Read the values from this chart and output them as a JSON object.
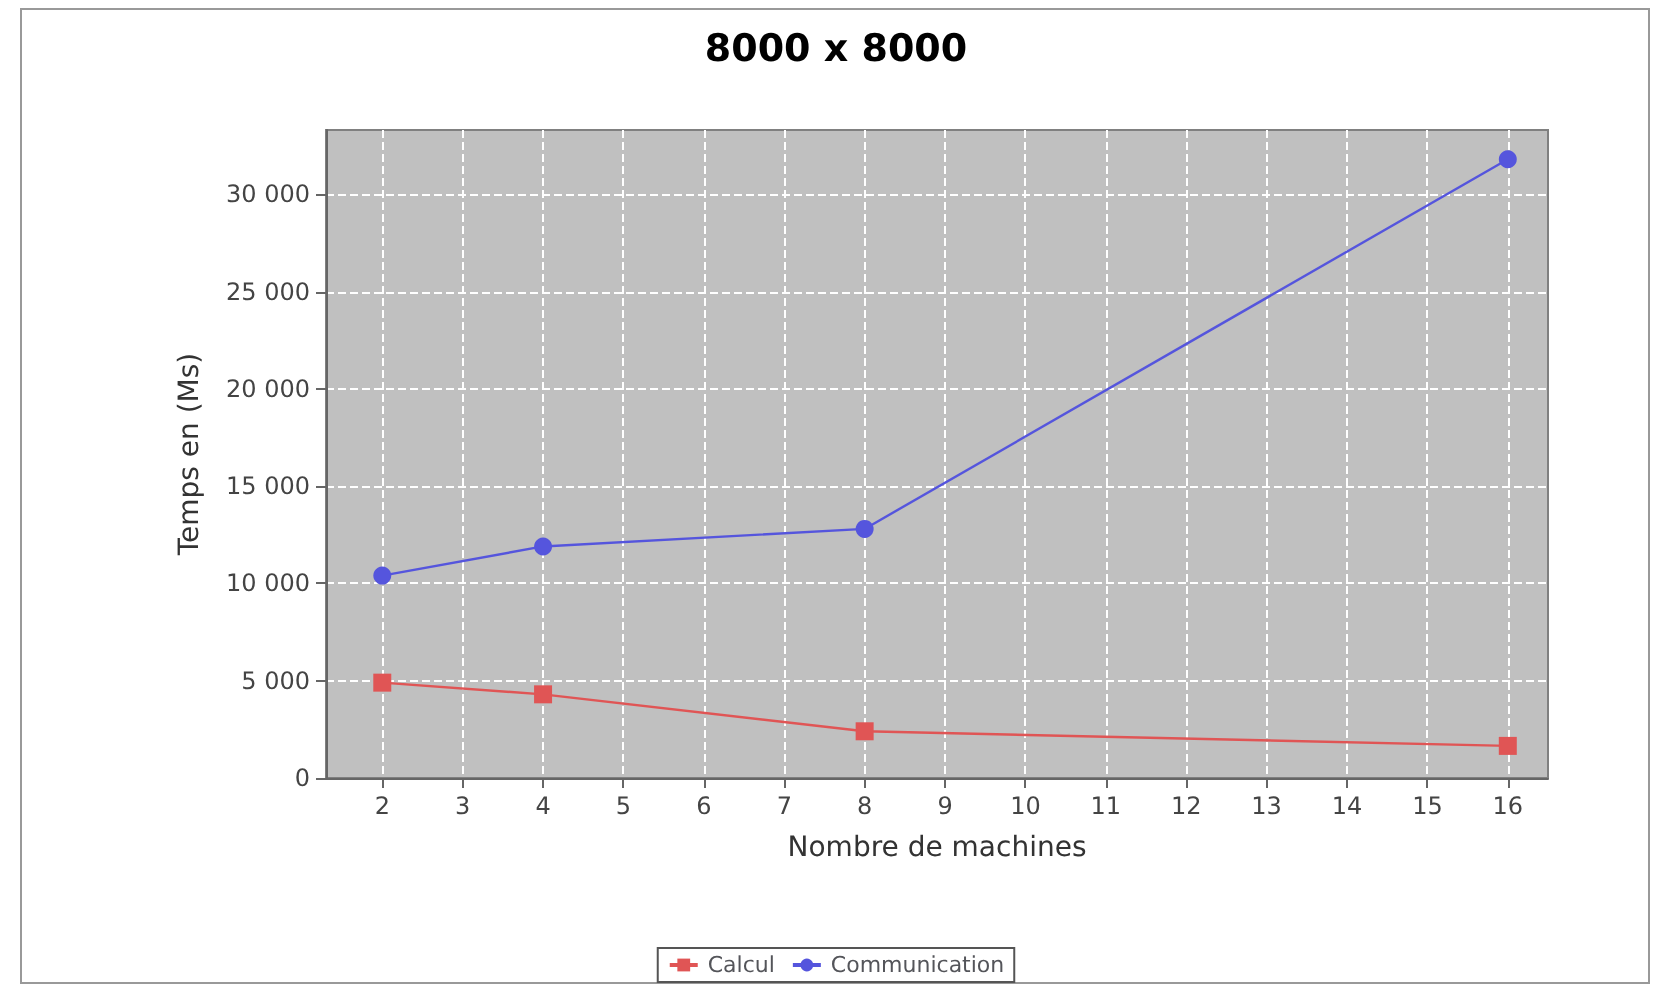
{
  "chart_data": {
    "type": "line",
    "title": "8000 x 8000",
    "xlabel": "Nombre de machines",
    "ylabel": "Temps en (Ms)",
    "x": [
      2,
      4,
      8,
      16
    ],
    "series": [
      {
        "name": "Calcul",
        "color": "#e05555",
        "values": [
          4900,
          4300,
          2400,
          1650
        ],
        "marker": "square"
      },
      {
        "name": "Communication",
        "color": "#5555dd",
        "values": [
          10400,
          11900,
          12800,
          31800
        ],
        "marker": "circle"
      }
    ],
    "xlim": [
      1.3,
      16.5
    ],
    "xticks": [
      2,
      3,
      4,
      5,
      6,
      7,
      8,
      9,
      10,
      11,
      12,
      13,
      14,
      15,
      16
    ],
    "ylim": [
      0,
      33300
    ],
    "yticks": [
      {
        "value": 0,
        "label": "0"
      },
      {
        "value": 5000,
        "label": "5 000"
      },
      {
        "value": 10000,
        "label": "10 000"
      },
      {
        "value": 15000,
        "label": "15 000"
      },
      {
        "value": 20000,
        "label": "20 000"
      },
      {
        "value": 25000,
        "label": "25 000"
      },
      {
        "value": 30000,
        "label": "30 000"
      }
    ],
    "grid": true,
    "legend": "bottom",
    "line_style": "solid"
  }
}
